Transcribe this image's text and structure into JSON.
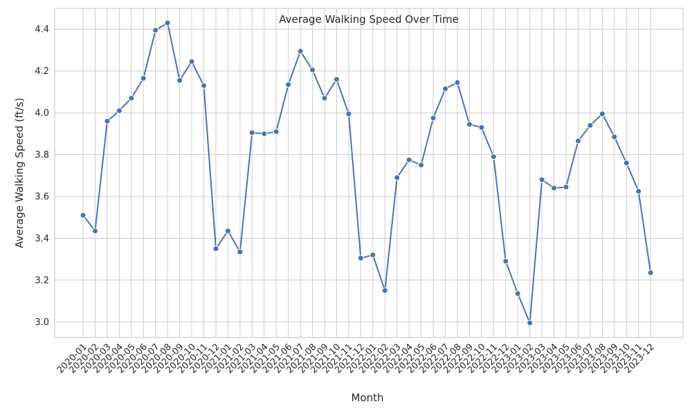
{
  "chart_data": {
    "type": "line",
    "title": "Average Walking Speed Over Time",
    "xlabel": "Month",
    "ylabel": "Average Walking Speed (ft/s)",
    "ylim": [
      2.925,
      4.5
    ],
    "yticks": [
      "3.0",
      "3.2",
      "3.4",
      "3.6",
      "3.8",
      "4.0",
      "4.2",
      "4.4"
    ],
    "grid": true,
    "categories": [
      "2020-01",
      "2020-02",
      "2020-03",
      "2020-04",
      "2020-05",
      "2020-06",
      "2020-07",
      "2020-08",
      "2020-09",
      "2020-10",
      "2020-11",
      "2020-12",
      "2021-01",
      "2021-02",
      "2021-03",
      "2021-04",
      "2021-05",
      "2021-06",
      "2021-07",
      "2021-08",
      "2021-09",
      "2021-10",
      "2021-11",
      "2021-12",
      "2022-01",
      "2022-02",
      "2022-03",
      "2022-04",
      "2022-05",
      "2022-06",
      "2022-07",
      "2022-08",
      "2022-09",
      "2022-10",
      "2022-11",
      "2022-12",
      "2023-01",
      "2023-02",
      "2023-03",
      "2023-04",
      "2023-05",
      "2023-06",
      "2023-07",
      "2023-08",
      "2023-09",
      "2023-10",
      "2023-11",
      "2023-12"
    ],
    "values": [
      3.51,
      3.435,
      3.96,
      4.01,
      4.07,
      4.165,
      4.395,
      4.43,
      4.155,
      4.245,
      4.13,
      3.35,
      3.435,
      3.335,
      3.905,
      3.9,
      3.91,
      4.135,
      4.295,
      4.205,
      4.07,
      4.16,
      3.995,
      3.305,
      3.32,
      3.15,
      3.69,
      3.775,
      3.75,
      3.975,
      4.115,
      4.145,
      3.945,
      3.93,
      3.79,
      3.29,
      3.135,
      2.995,
      3.68,
      3.64,
      3.645,
      3.865,
      3.94,
      3.995,
      3.885,
      3.76,
      3.625,
      3.235
    ],
    "color": "#4c72b0"
  }
}
